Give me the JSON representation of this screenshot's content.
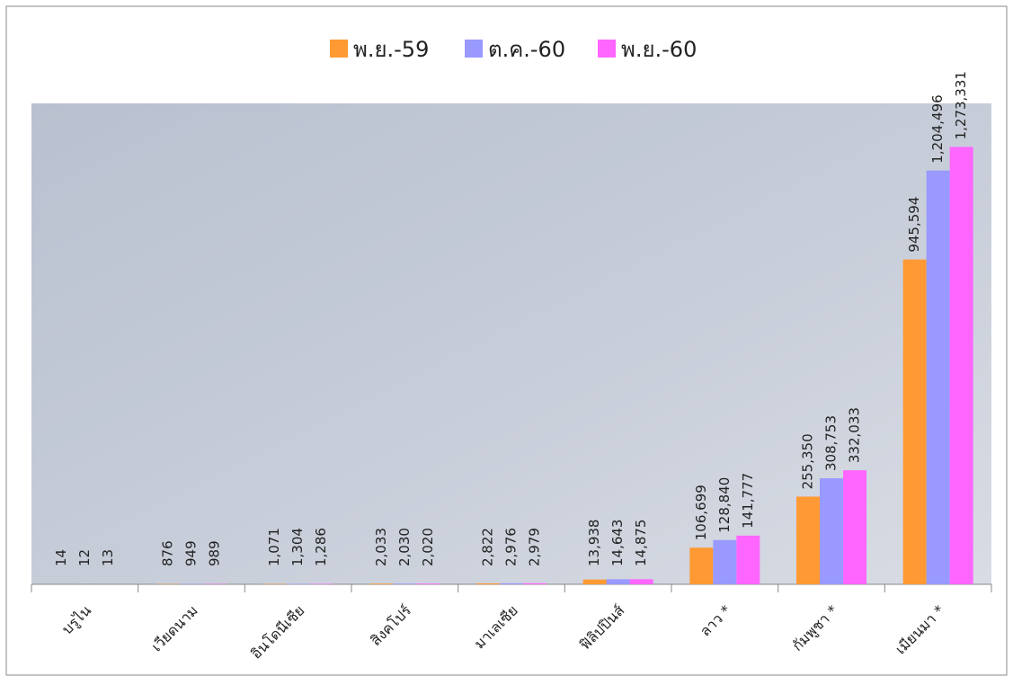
{
  "chart_data": {
    "type": "bar",
    "categories": [
      "บรูไน",
      "เวียดนาม",
      "อินโดนีเซีย",
      "สิงคโปร์",
      "มาเลเซีย",
      "ฟิลิปปินส์",
      "ลาว *",
      "กัมพูชา *",
      "เมียนมา *"
    ],
    "series": [
      {
        "name": "พ.ย.-59",
        "color": "#ff9933",
        "values": [
          14,
          876,
          1071,
          2033,
          2822,
          13938,
          106699,
          255350,
          945594
        ],
        "value_labels": [
          "14",
          "876",
          "1,071",
          "2,033",
          "2,822",
          "13,938",
          "106,699",
          "255,350",
          "945,594"
        ]
      },
      {
        "name": "ต.ค.-60",
        "color": "#9999ff",
        "values": [
          12,
          949,
          1304,
          2030,
          2976,
          14643,
          128840,
          308753,
          1204496
        ],
        "value_labels": [
          "12",
          "949",
          "1,304",
          "2,030",
          "2,976",
          "14,643",
          "128,840",
          "308,753",
          "1,204,496"
        ]
      },
      {
        "name": "พ.ย.-60",
        "color": "#ff66ff",
        "values": [
          13,
          989,
          1286,
          2020,
          2979,
          14875,
          141777,
          332033,
          1273331
        ],
        "value_labels": [
          "13",
          "989",
          "1,286",
          "2,020",
          "2,979",
          "14,875",
          "141,777",
          "332,033",
          "1,273,331"
        ]
      }
    ],
    "ylim": [
      0,
      1400000
    ],
    "legend": "top"
  }
}
